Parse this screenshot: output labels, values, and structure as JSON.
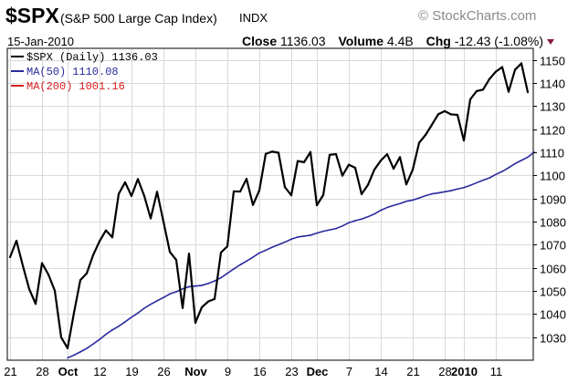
{
  "header": {
    "symbol": "$SPX",
    "index_name": "(S&P 500 Large Cap Index)",
    "exchange": "INDX",
    "brand": "© StockCharts.com",
    "date": "15-Jan-2010",
    "close_label": "Close",
    "close_value": "1136.03",
    "volume_label": "Volume",
    "volume_value": "4.4B",
    "chg_label": "Chg",
    "chg_value": "-12.43 (-1.08%)"
  },
  "colors": {
    "price": "#000000",
    "ma50": "#2a2a9e",
    "ma200": "#d81e1e",
    "chg_marker": "#8b1a3a"
  },
  "chart_data": {
    "type": "line",
    "ylim": [
      1020,
      1155
    ],
    "ytick_labels": [
      "1030",
      "1040",
      "1050",
      "1060",
      "1070",
      "1080",
      "1090",
      "1100",
      "1110",
      "1120",
      "1130",
      "1140",
      "1150"
    ],
    "xtick_labels": [
      {
        "label": "21",
        "bold": false
      },
      {
        "label": "28",
        "bold": false
      },
      {
        "label": "Oct",
        "bold": true
      },
      {
        "label": "12",
        "bold": false
      },
      {
        "label": "19",
        "bold": false
      },
      {
        "label": "26",
        "bold": false
      },
      {
        "label": "Nov",
        "bold": true
      },
      {
        "label": "9",
        "bold": false
      },
      {
        "label": "16",
        "bold": false
      },
      {
        "label": "23",
        "bold": false
      },
      {
        "label": "Dec",
        "bold": true
      },
      {
        "label": "7",
        "bold": false
      },
      {
        "label": "14",
        "bold": false
      },
      {
        "label": "21",
        "bold": false
      },
      {
        "label": "28",
        "bold": false
      },
      {
        "label": "2010",
        "bold": true
      },
      {
        "label": "11",
        "bold": false
      }
    ],
    "xtick_index": [
      0,
      5,
      9,
      14,
      19,
      24,
      29,
      34,
      39,
      44,
      48,
      53,
      58,
      63,
      68,
      71,
      76
    ],
    "series": [
      {
        "name": "$SPX (Daily)",
        "legend_value": "1136.03",
        "values": [
          1064.6,
          1071.7,
          1060.9,
          1050.8,
          1044.4,
          1062.0,
          1057.1,
          1050.1,
          1029.9,
          1025.2,
          1040.5,
          1054.7,
          1057.6,
          1065.5,
          1071.5,
          1076.2,
          1073.2,
          1092.0,
          1097.0,
          1091.1,
          1098.4,
          1091.1,
          1081.4,
          1092.9,
          1080.0,
          1066.9,
          1063.4,
          1042.6,
          1066.1,
          1036.2,
          1042.9,
          1045.4,
          1046.5,
          1066.6,
          1069.3,
          1093.1,
          1093.0,
          1098.5,
          1087.2,
          1093.5,
          1109.3,
          1110.3,
          1109.8,
          1094.9,
          1091.4,
          1106.2,
          1105.7,
          1110.1,
          1087.1,
          1091.5,
          1108.9,
          1109.2,
          1099.9,
          1104.6,
          1103.3,
          1091.9,
          1095.9,
          1102.5,
          1106.4,
          1109.2,
          1102.9,
          1107.9,
          1096.1,
          1102.5,
          1114.1,
          1117.5,
          1121.9,
          1126.5,
          1127.8,
          1126.4,
          1126.2,
          1115.1,
          1132.9,
          1136.5,
          1137.1,
          1141.7,
          1144.9,
          1146.9,
          1136.2,
          1145.7,
          1148.5,
          1136.0
        ]
      },
      {
        "name": "MA(50)",
        "legend_value": "1110.08",
        "start_index": 9,
        "values": [
          1021.0,
          1022.2,
          1023.6,
          1025.1,
          1027.0,
          1029.0,
          1031.2,
          1033.1,
          1034.7,
          1036.6,
          1038.6,
          1040.4,
          1042.5,
          1044.2,
          1045.7,
          1047.1,
          1048.7,
          1049.6,
          1050.9,
          1051.8,
          1052.1,
          1052.4,
          1053.2,
          1054.3,
          1055.7,
          1057.6,
          1059.5,
          1061.3,
          1062.9,
          1064.6,
          1066.4,
          1067.6,
          1068.9,
          1070.0,
          1071.1,
          1072.4,
          1073.3,
          1073.7,
          1074.1,
          1075.0,
          1075.8,
          1076.4,
          1077.0,
          1078.1,
          1079.5,
          1080.4,
          1081.1,
          1082.1,
          1083.3,
          1084.9,
          1086.1,
          1087.0,
          1087.8,
          1088.8,
          1089.3,
          1090.2,
          1091.2,
          1092.0,
          1092.4,
          1092.9,
          1093.4,
          1094.1,
          1094.7,
          1095.7,
          1096.8,
          1097.9,
          1098.9,
          1100.4,
          1101.7,
          1103.3,
          1105.1,
          1106.5,
          1107.9,
          1110.1
        ]
      },
      {
        "name": "MA(200)",
        "legend_value": "1001.16"
      }
    ]
  }
}
